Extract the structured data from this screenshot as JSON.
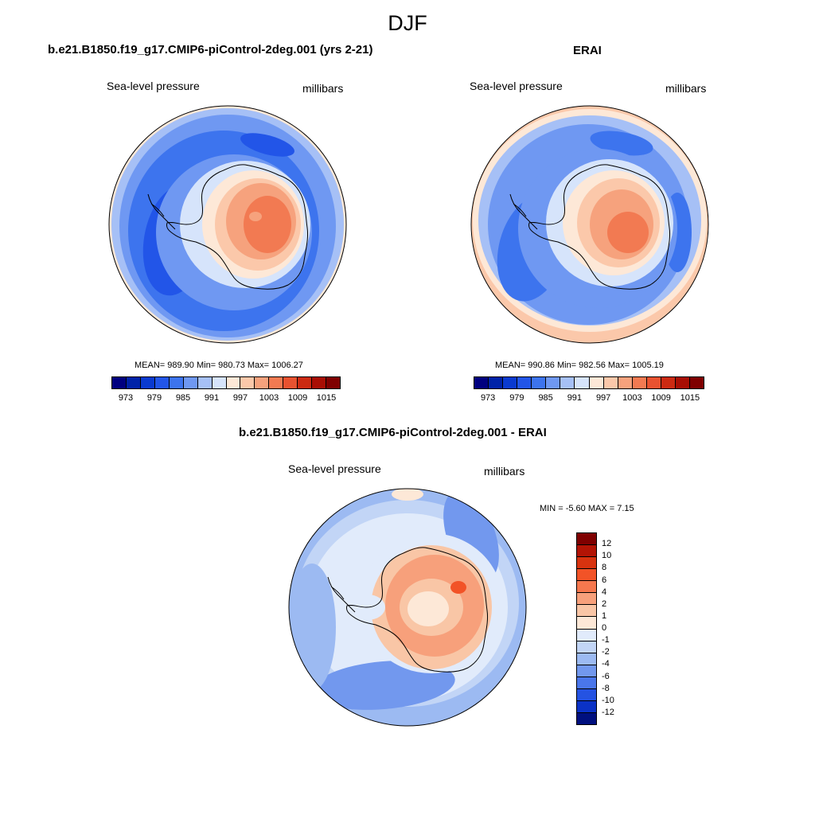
{
  "title": "DJF",
  "panels": [
    {
      "id": "model",
      "heading": "b.e21.B1850.f19_g17.CMIP6-piControl-2deg.001 (yrs 2-21)",
      "left_label": "Sea-level pressure",
      "right_label": "millibars",
      "stats": "MEAN= 989.90  Min= 980.73  Max= 1006.27",
      "colorbar_ticks": [
        "973",
        "979",
        "985",
        "991",
        "997",
        "1003",
        "1009",
        "1015"
      ]
    },
    {
      "id": "obs",
      "heading": "ERAI",
      "left_label": "Sea-level pressure",
      "right_label": "millibars",
      "stats": "MEAN= 990.86  Min= 982.56  Max= 1005.19",
      "colorbar_ticks": [
        "973",
        "979",
        "985",
        "991",
        "997",
        "1003",
        "1009",
        "1015"
      ]
    },
    {
      "id": "diff",
      "heading": "b.e21.B1850.f19_g17.CMIP6-piControl-2deg.001 - ERAI",
      "left_label": "Sea-level pressure",
      "right_label": "millibars",
      "stats": "MIN =  -5.60 MAX =   7.15",
      "colorbar_ticks": [
        "12",
        "10",
        "8",
        "6",
        "4",
        "2",
        "1",
        "0",
        "-1",
        "-2",
        "-4",
        "-6",
        "-8",
        "-10",
        "-12"
      ]
    }
  ],
  "colors": {
    "abs_scale": [
      "#00007f",
      "#0022a8",
      "#0a3ad0",
      "#2255e8",
      "#3d74ee",
      "#6f98f2",
      "#a6c0f6",
      "#d6e4fb",
      "#fde8d7",
      "#fbc8aa",
      "#f6a27d",
      "#f27a52",
      "#e85230",
      "#cc2a12",
      "#a80e04",
      "#7f0000"
    ],
    "diff_scale": [
      "#7f0000",
      "#b31405",
      "#d8330f",
      "#f25327",
      "#f6784e",
      "#f7a07b",
      "#f9c6a6",
      "#fde8d7",
      "#e1ebfb",
      "#c2d5f6",
      "#9cbaf2",
      "#7298ee",
      "#4a76ea",
      "#2553e2",
      "#0b32c6",
      "#00107f"
    ],
    "coastline": "#000000"
  }
}
